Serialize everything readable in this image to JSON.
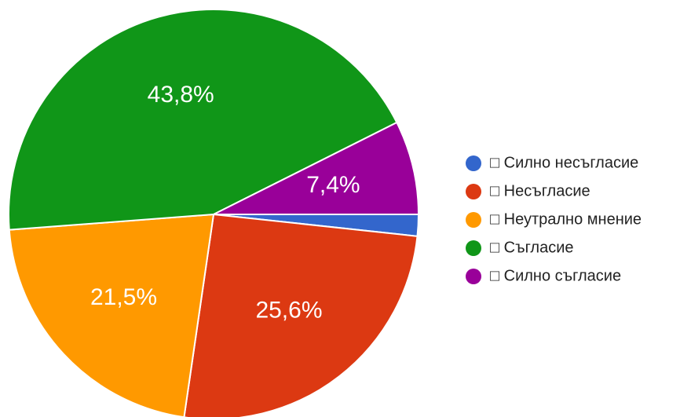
{
  "chart_data": {
    "type": "pie",
    "categories": [
      "□ Силно несъгласие",
      "□ Несъгласие",
      "□ Неутрално мнение",
      "□ Съгласие",
      "□ Силно съгласие"
    ],
    "values": [
      1.7,
      25.6,
      21.5,
      43.8,
      7.4
    ],
    "value_labels": [
      null,
      "25,6%",
      "21,5%",
      "43,8%",
      "7,4%"
    ],
    "colors": [
      "#3366cc",
      "#dc3912",
      "#ff9900",
      "#109618",
      "#990099"
    ],
    "start_angle": 90,
    "legend": "right"
  }
}
